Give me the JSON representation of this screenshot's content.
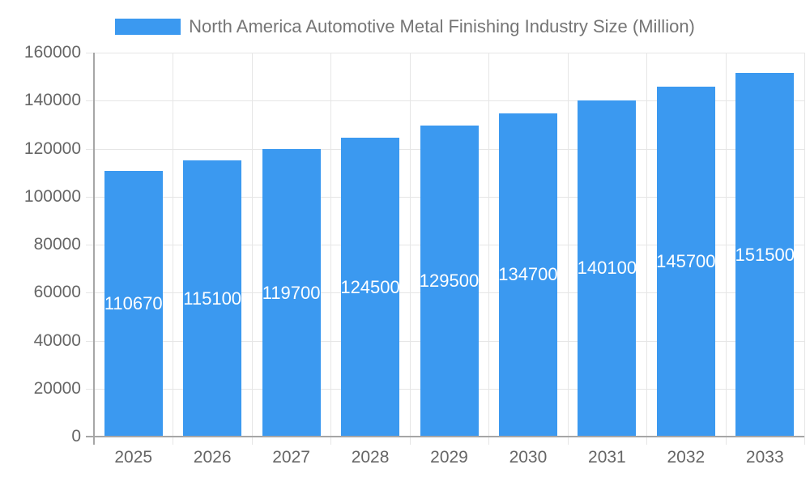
{
  "chart_data": {
    "type": "bar",
    "title": "North America Automotive Metal Finishing Industry Size (Million)",
    "categories": [
      "2025",
      "2026",
      "2027",
      "2028",
      "2029",
      "2030",
      "2031",
      "2032",
      "2033"
    ],
    "values": [
      110670,
      115100,
      119700,
      124500,
      129500,
      134700,
      140100,
      145700,
      151500
    ],
    "series": [
      {
        "name": "North America Automotive Metal Finishing Industry Size (Million)",
        "values": [
          110670,
          115100,
          119700,
          124500,
          129500,
          134700,
          140100,
          145700,
          151500
        ]
      }
    ],
    "xlabel": "",
    "ylabel": "",
    "ylim": [
      0,
      160000
    ],
    "ytick_step": 20000,
    "ytick_labels": [
      "0",
      "20000",
      "40000",
      "60000",
      "80000",
      "100000",
      "120000",
      "140000",
      "160000"
    ],
    "grid": true,
    "legend_position": "top-center",
    "bar_labels_visible": true,
    "bar_label_color": "#ffffff"
  },
  "legend": {
    "label": "North America Automotive Metal Finishing Industry Size (Million)"
  },
  "colors": {
    "bar": "#3b99f0",
    "gridline": "#e6e6e6",
    "axis_line": "#a6a6a6",
    "tick_text": "#666666",
    "legend_text": "#757575"
  }
}
